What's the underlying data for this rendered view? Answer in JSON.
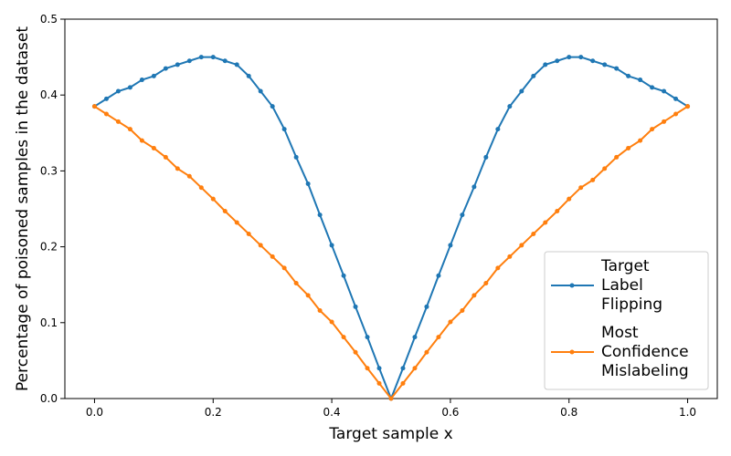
{
  "chart_data": {
    "type": "line",
    "xlabel": "Target sample x",
    "ylabel": "Percentage of poisoned samples in the dataset",
    "xlim": [
      -0.05,
      1.05
    ],
    "ylim": [
      0,
      0.5
    ],
    "xticks": [
      0.0,
      0.2,
      0.4,
      0.6,
      0.8,
      1.0
    ],
    "xtick_labels": [
      "0.0",
      "0.2",
      "0.4",
      "0.6",
      "0.8",
      "1.0"
    ],
    "yticks": [
      0.0,
      0.1,
      0.2,
      0.3,
      0.4,
      0.5
    ],
    "ytick_labels": [
      "0.0",
      "0.1",
      "0.2",
      "0.3",
      "0.4",
      "0.5"
    ],
    "grid": false,
    "legend_position": "bottom-right",
    "x": [
      0.0,
      0.02,
      0.04,
      0.06,
      0.08,
      0.1,
      0.12,
      0.14,
      0.16,
      0.18,
      0.2,
      0.22,
      0.24,
      0.26,
      0.28,
      0.3,
      0.32,
      0.34,
      0.36,
      0.38,
      0.4,
      0.42,
      0.44,
      0.46,
      0.48,
      0.5,
      0.52,
      0.54,
      0.56,
      0.58,
      0.6,
      0.62,
      0.64,
      0.66,
      0.68,
      0.7,
      0.72,
      0.74,
      0.76,
      0.78,
      0.8,
      0.82,
      0.84,
      0.86,
      0.88,
      0.9,
      0.92,
      0.94,
      0.96,
      0.98,
      1.0
    ],
    "series": [
      {
        "name": "Target Label Flipping",
        "legend_lines": [
          "Target",
          "Label",
          "Flipping"
        ],
        "color": "#1f77b4",
        "values": [
          0.385,
          0.395,
          0.405,
          0.41,
          0.42,
          0.425,
          0.435,
          0.44,
          0.445,
          0.45,
          0.45,
          0.445,
          0.44,
          0.425,
          0.405,
          0.385,
          0.355,
          0.318,
          0.283,
          0.242,
          0.202,
          0.162,
          0.121,
          0.081,
          0.04,
          0.0,
          0.04,
          0.081,
          0.121,
          0.162,
          0.202,
          0.242,
          0.279,
          0.318,
          0.355,
          0.385,
          0.405,
          0.425,
          0.44,
          0.445,
          0.45,
          0.45,
          0.445,
          0.44,
          0.435,
          0.425,
          0.42,
          0.41,
          0.405,
          0.395,
          0.385
        ]
      },
      {
        "name": "Most Confidence Mislabeling",
        "legend_lines": [
          "Most",
          "Confidence",
          "Mislabeling"
        ],
        "color": "#ff7f0e",
        "values": [
          0.385,
          0.375,
          0.365,
          0.355,
          0.34,
          0.33,
          0.318,
          0.303,
          0.293,
          0.278,
          0.263,
          0.247,
          0.232,
          0.217,
          0.202,
          0.187,
          0.172,
          0.152,
          0.136,
          0.116,
          0.101,
          0.081,
          0.061,
          0.04,
          0.02,
          0.0,
          0.02,
          0.04,
          0.061,
          0.081,
          0.101,
          0.116,
          0.136,
          0.152,
          0.172,
          0.187,
          0.202,
          0.217,
          0.232,
          0.247,
          0.263,
          0.278,
          0.288,
          0.303,
          0.318,
          0.33,
          0.34,
          0.355,
          0.365,
          0.375,
          0.385
        ]
      }
    ]
  }
}
